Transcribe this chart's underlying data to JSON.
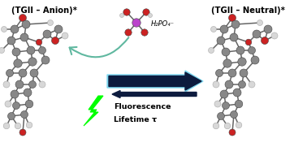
{
  "title_left": "(TGII – Anion)*",
  "title_right": "(TGII – Neutral)*",
  "h2po4_label": "H₂PO₄⁻",
  "fluorescence_label": "Fluorescence",
  "lifetime_label": "Lifetime τ",
  "bg_color": "#ffffff",
  "arrow_color": "#0d1b3e",
  "arrow_outline_color": "#7fd8f0",
  "green_bolt_color": "#00ff00",
  "teal_arc_color": "#60b8a0",
  "phosphate_center_color": "#bb44cc",
  "mol_gray": "#888888",
  "mol_lgray": "#b0b0b0",
  "mol_white": "#d8d8d8",
  "mol_red": "#cc2222",
  "fig_width": 3.78,
  "fig_height": 1.81,
  "dpi": 100
}
